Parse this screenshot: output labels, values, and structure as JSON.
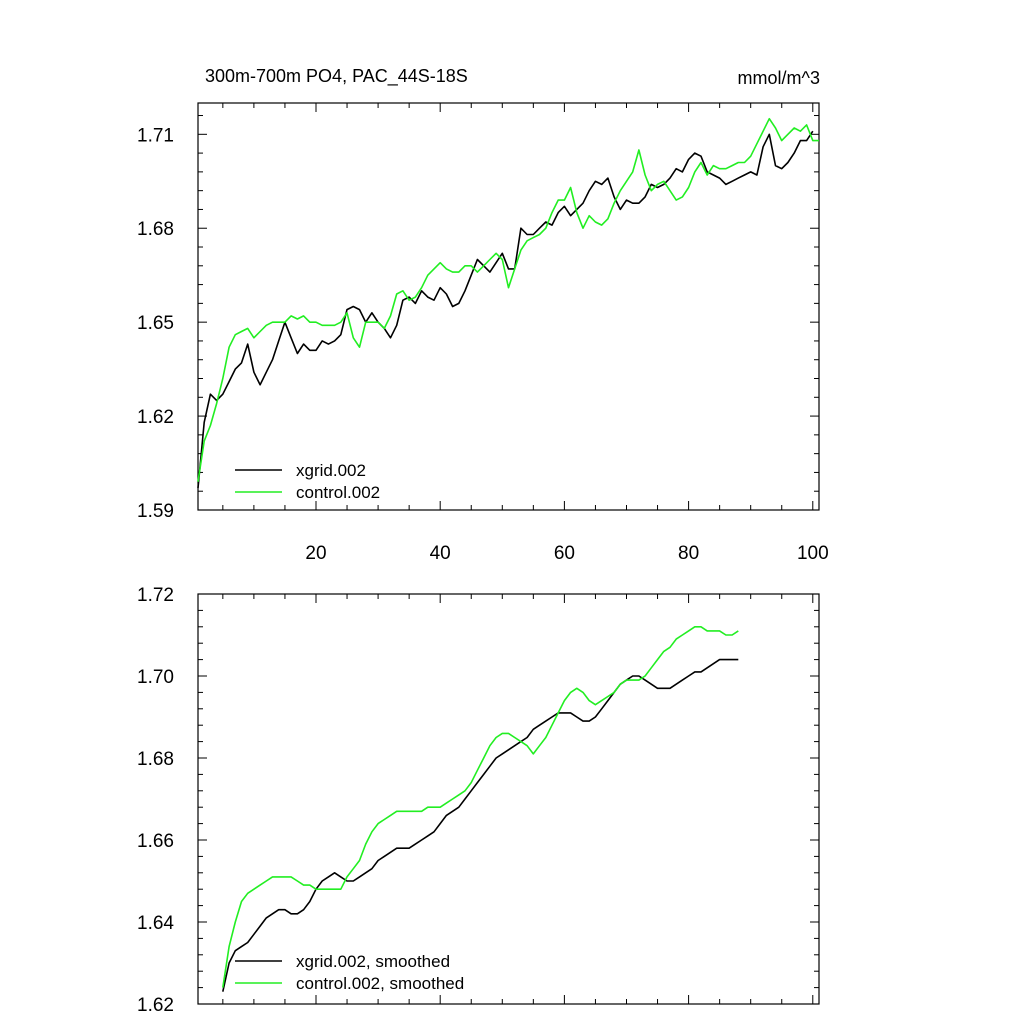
{
  "chart_data": [
    {
      "type": "line",
      "title": "300m-700m PO4, PAC_44S-18S",
      "units": "mmol/m^3",
      "xlim": [
        1,
        101
      ],
      "ylim": [
        1.59,
        1.72
      ],
      "xticks": [
        20,
        40,
        60,
        80,
        100
      ],
      "yticks": [
        1.59,
        1.62,
        1.65,
        1.68,
        1.71
      ],
      "ytick_labels": [
        "1.59",
        "1.62",
        "1.65",
        "1.68",
        "1.71"
      ],
      "legend_position": "bottom-left",
      "series": [
        {
          "name": "xgrid.002",
          "color": "#000000",
          "x_start": 1,
          "values": [
            1.597,
            1.618,
            1.627,
            1.625,
            1.627,
            1.631,
            1.635,
            1.637,
            1.643,
            1.634,
            1.63,
            1.634,
            1.638,
            1.644,
            1.65,
            1.645,
            1.64,
            1.643,
            1.641,
            1.641,
            1.644,
            1.643,
            1.644,
            1.646,
            1.654,
            1.655,
            1.654,
            1.65,
            1.653,
            1.65,
            1.648,
            1.645,
            1.649,
            1.657,
            1.658,
            1.656,
            1.66,
            1.658,
            1.657,
            1.661,
            1.659,
            1.655,
            1.656,
            1.66,
            1.665,
            1.67,
            1.668,
            1.666,
            1.669,
            1.672,
            1.667,
            1.667,
            1.68,
            1.678,
            1.678,
            1.68,
            1.682,
            1.681,
            1.685,
            1.687,
            1.684,
            1.686,
            1.688,
            1.692,
            1.695,
            1.694,
            1.696,
            1.69,
            1.686,
            1.689,
            1.688,
            1.688,
            1.69,
            1.694,
            1.693,
            1.694,
            1.696,
            1.699,
            1.698,
            1.702,
            1.704,
            1.703,
            1.698,
            1.697,
            1.696,
            1.694,
            1.695,
            1.696,
            1.697,
            1.698,
            1.697,
            1.706,
            1.71,
            1.7,
            1.699,
            1.701,
            1.704,
            1.708,
            1.708,
            1.711
          ]
        },
        {
          "name": "control.002",
          "color": "#22ee22",
          "x_start": 1,
          "values": [
            1.599,
            1.612,
            1.617,
            1.624,
            1.632,
            1.642,
            1.646,
            1.647,
            1.648,
            1.645,
            1.647,
            1.649,
            1.65,
            1.65,
            1.65,
            1.652,
            1.651,
            1.652,
            1.65,
            1.65,
            1.649,
            1.649,
            1.649,
            1.65,
            1.653,
            1.645,
            1.642,
            1.65,
            1.65,
            1.65,
            1.648,
            1.652,
            1.659,
            1.66,
            1.657,
            1.658,
            1.661,
            1.665,
            1.667,
            1.669,
            1.667,
            1.666,
            1.666,
            1.668,
            1.668,
            1.666,
            1.668,
            1.67,
            1.672,
            1.67,
            1.661,
            1.667,
            1.673,
            1.676,
            1.677,
            1.678,
            1.68,
            1.685,
            1.689,
            1.689,
            1.693,
            1.685,
            1.68,
            1.684,
            1.682,
            1.681,
            1.683,
            1.688,
            1.692,
            1.695,
            1.698,
            1.705,
            1.697,
            1.692,
            1.694,
            1.695,
            1.692,
            1.689,
            1.69,
            1.693,
            1.698,
            1.701,
            1.697,
            1.7,
            1.699,
            1.699,
            1.7,
            1.701,
            1.701,
            1.703,
            1.707,
            1.711,
            1.715,
            1.712,
            1.708,
            1.71,
            1.712,
            1.711,
            1.713,
            1.708,
            1.708
          ]
        }
      ]
    },
    {
      "type": "line",
      "title": "",
      "xlim": [
        1,
        101
      ],
      "ylim": [
        1.62,
        1.72
      ],
      "xticks": [
        20,
        40,
        60,
        80,
        100
      ],
      "yticks": [
        1.62,
        1.64,
        1.66,
        1.68,
        1.7,
        1.72
      ],
      "ytick_labels": [
        "1.62",
        "1.64",
        "1.66",
        "1.68",
        "1.70",
        "1.72"
      ],
      "legend_position": "bottom-left",
      "series": [
        {
          "name": "xgrid.002, smoothed",
          "color": "#000000",
          "x_start": 5,
          "values": [
            1.623,
            1.63,
            1.633,
            1.634,
            1.635,
            1.637,
            1.639,
            1.641,
            1.642,
            1.643,
            1.643,
            1.642,
            1.642,
            1.643,
            1.645,
            1.648,
            1.65,
            1.651,
            1.652,
            1.651,
            1.65,
            1.65,
            1.651,
            1.652,
            1.653,
            1.655,
            1.656,
            1.657,
            1.658,
            1.658,
            1.658,
            1.659,
            1.66,
            1.661,
            1.662,
            1.664,
            1.666,
            1.667,
            1.668,
            1.67,
            1.672,
            1.674,
            1.676,
            1.678,
            1.68,
            1.681,
            1.682,
            1.683,
            1.684,
            1.685,
            1.687,
            1.688,
            1.689,
            1.69,
            1.691,
            1.691,
            1.691,
            1.69,
            1.689,
            1.689,
            1.69,
            1.692,
            1.694,
            1.696,
            1.698,
            1.699,
            1.7,
            1.7,
            1.699,
            1.698,
            1.697,
            1.697,
            1.697,
            1.698,
            1.699,
            1.7,
            1.701,
            1.701,
            1.702,
            1.703,
            1.704,
            1.704,
            1.704,
            1.704
          ]
        },
        {
          "name": "control.002, smoothed",
          "color": "#22ee22",
          "x_start": 5,
          "values": [
            1.624,
            1.634,
            1.64,
            1.645,
            1.647,
            1.648,
            1.649,
            1.65,
            1.651,
            1.651,
            1.651,
            1.651,
            1.65,
            1.649,
            1.649,
            1.648,
            1.648,
            1.648,
            1.648,
            1.648,
            1.651,
            1.653,
            1.655,
            1.659,
            1.662,
            1.664,
            1.665,
            1.666,
            1.667,
            1.667,
            1.667,
            1.667,
            1.667,
            1.668,
            1.668,
            1.668,
            1.669,
            1.67,
            1.671,
            1.672,
            1.674,
            1.677,
            1.68,
            1.683,
            1.685,
            1.686,
            1.686,
            1.685,
            1.684,
            1.683,
            1.681,
            1.683,
            1.685,
            1.688,
            1.691,
            1.694,
            1.696,
            1.697,
            1.696,
            1.694,
            1.693,
            1.694,
            1.695,
            1.696,
            1.698,
            1.699,
            1.699,
            1.699,
            1.7,
            1.702,
            1.704,
            1.706,
            1.707,
            1.709,
            1.71,
            1.711,
            1.712,
            1.712,
            1.711,
            1.711,
            1.711,
            1.71,
            1.71,
            1.711
          ]
        }
      ]
    }
  ]
}
